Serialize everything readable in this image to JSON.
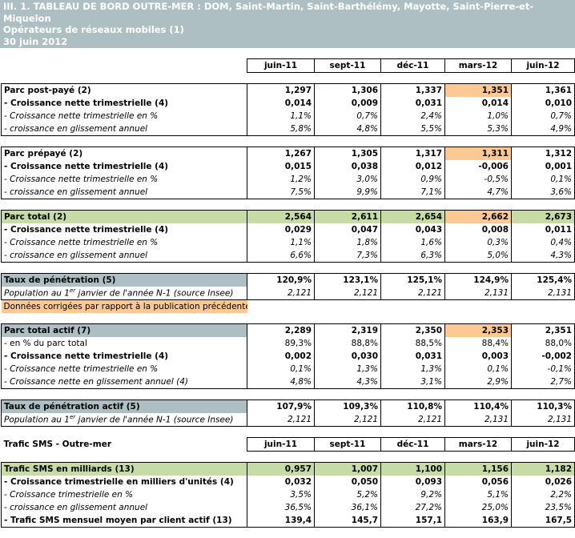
{
  "title": {
    "line1": "III. 1. TABLEAU DE BORD OUTRE-MER : DOM, Saint-Martin, Saint-Barthélémy, Mayotte, Saint-Pierre-et-Miquelon",
    "line2": "Opérateurs de réseaux mobiles (1)",
    "line3": "30 juin 2012"
  },
  "columns": [
    "juin-11",
    "sept-11",
    "déc-11",
    "mars-12",
    "juin-12"
  ],
  "colors": {
    "header": "#aebfc3",
    "green": "#c6dca4",
    "corrected": "#fcc894"
  },
  "blocks": [
    {
      "rows": [
        {
          "label": "Parc post-payé (2)",
          "values": [
            "1,297",
            "1,306",
            "1,337",
            "1,351",
            "1,361"
          ],
          "style": "b",
          "orange": 3
        },
        {
          "label": "- Croissance nette trimestrielle (4)",
          "values": [
            "0,014",
            "0,009",
            "0,031",
            "0,014",
            "0,010"
          ],
          "style": "b"
        },
        {
          "label": "- Croissance nette trimestrielle en %",
          "values": [
            "1,1%",
            "0,7%",
            "2,4%",
            "1,0%",
            "0,7%"
          ],
          "style": "i"
        },
        {
          "label": "- croissance en glissement annuel",
          "values": [
            "5,8%",
            "4,8%",
            "5,5%",
            "5,3%",
            "4,9%"
          ],
          "style": "i"
        }
      ]
    },
    {
      "rows": [
        {
          "label": "Parc prépayé (2)",
          "values": [
            "1,267",
            "1,305",
            "1,317",
            "1,311",
            "1,312"
          ],
          "style": "b",
          "orange": 3
        },
        {
          "label": "- Croissance nette trimestrielle (4)",
          "values": [
            "0,015",
            "0,038",
            "0,012",
            "-0,006",
            "0,001"
          ],
          "style": "b"
        },
        {
          "label": "- Croissance nette trimestrielle en %",
          "values": [
            "1,2%",
            "3,0%",
            "0,9%",
            "-0,5%",
            "0,1%"
          ],
          "style": "i"
        },
        {
          "label": "- croissance en glissement annuel",
          "values": [
            "7,5%",
            "9,9%",
            "7,1%",
            "4,7%",
            "3,6%"
          ],
          "style": "i"
        }
      ]
    },
    {
      "rows": [
        {
          "label": "Parc total (2)",
          "values": [
            "2,564",
            "2,611",
            "2,654",
            "2,662",
            "2,673"
          ],
          "style": "b",
          "fill": "green",
          "orange": 3
        },
        {
          "label": "- Croissance nette trimestrielle (4)",
          "values": [
            "0,029",
            "0,047",
            "0,043",
            "0,008",
            "0,011"
          ],
          "style": "b"
        },
        {
          "label": "- Croissance nette trimestrielle en %",
          "values": [
            "1,1%",
            "1,8%",
            "1,6%",
            "0,3%",
            "0,4%"
          ],
          "style": "i"
        },
        {
          "label": "- croissance en glissement annuel",
          "values": [
            "6,6%",
            "7,3%",
            "6,3%",
            "5,0%",
            "4,3%"
          ],
          "style": "i"
        }
      ]
    },
    {
      "rows": [
        {
          "label": "Taux de pénétration (5)",
          "values": [
            "120,9%",
            "123,1%",
            "125,1%",
            "124,9%",
            "125,4%"
          ],
          "style": "b",
          "labelfill": "gray"
        },
        {
          "label": "Population au 1",
          "sup": "er",
          "label2": " janvier de l'année N-1 (source Insee)",
          "values": [
            "2,121",
            "2,121",
            "2,121",
            "2,131",
            "2,131"
          ],
          "style": "i"
        }
      ],
      "note": "Données corrigées par rapport à la publication précédente"
    },
    {
      "rows": [
        {
          "label": "Parc total actif (7)",
          "values": [
            "2,289",
            "2,319",
            "2,350",
            "2,353",
            "2,351"
          ],
          "style": "b",
          "labelfill": "gray",
          "orange": 3
        },
        {
          "label": "- en % du parc total",
          "values": [
            "89,3%",
            "88,8%",
            "88,5%",
            "88,4%",
            "88,0%"
          ],
          "style": ""
        },
        {
          "label": "- Croissance nette trimestrielle (4)",
          "values": [
            "0,002",
            "0,030",
            "0,031",
            "0,003",
            "-0,002"
          ],
          "style": "bl"
        },
        {
          "label": "- Croissance nette trimestrielle en %",
          "values": [
            "0,1%",
            "1,3%",
            "1,3%",
            "0,1%",
            "-0,1%"
          ],
          "style": "i"
        },
        {
          "label": "- Croissance nette en glissement annuel (4)",
          "values": [
            "4,8%",
            "4,3%",
            "3,1%",
            "2,9%",
            "2,7%"
          ],
          "style": "i"
        }
      ]
    },
    {
      "rows": [
        {
          "label": "Taux de pénétration actif (5)",
          "values": [
            "107,9%",
            "109,3%",
            "110,8%",
            "110,4%",
            "110,3%"
          ],
          "style": "b",
          "labelfill": "gray"
        },
        {
          "label": "Population au 1",
          "sup": "er",
          "label2": " janvier de l'année N-1 (source Insee)",
          "values": [
            "2,121",
            "2,121",
            "2,121",
            "2,131",
            "2,131"
          ],
          "style": "i"
        }
      ]
    },
    {
      "sms_header": "Trafic SMS - Outre-mer"
    },
    {
      "rows": [
        {
          "label": "Trafic SMS en milliards (13)",
          "values": [
            "0,957",
            "1,007",
            "1,100",
            "1,156",
            "1,182"
          ],
          "style": "b",
          "fill": "green"
        },
        {
          "label": "- Croissance trimestrielle en milliers d'unités (4)",
          "values": [
            "0,032",
            "0,050",
            "0,093",
            "0,056",
            "0,026"
          ],
          "style": "bl"
        },
        {
          "label": "- Croissance trimestrielle en %",
          "values": [
            "3,5%",
            "5,2%",
            "9,2%",
            "5,1%",
            "2,2%"
          ],
          "style": "i"
        },
        {
          "label": "- croissance en glissement annuel",
          "values": [
            "36,5%",
            "36,1%",
            "27,2%",
            "25,0%",
            "23,5%"
          ],
          "style": "i"
        },
        {
          "label": "- Trafic SMS mensuel moyen par client actif (13)",
          "values": [
            "139,4",
            "145,7",
            "157,1",
            "163,9",
            "167,5"
          ],
          "style": "bl"
        }
      ]
    }
  ]
}
